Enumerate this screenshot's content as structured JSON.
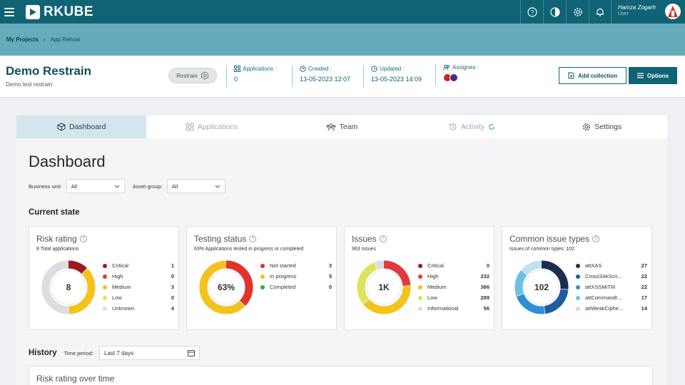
{
  "app": {
    "logo_text": "RKUBE"
  },
  "user": {
    "name": "Hamza Zogarh",
    "role": "User"
  },
  "top_icons": [
    "help-icon",
    "contrast-icon",
    "gear-icon",
    "bell-icon"
  ],
  "breadcrumb": {
    "root": "My Projects",
    "separator": "›",
    "current": "App Rehost"
  },
  "project": {
    "title": "Demo Restrain",
    "subtitle": "Demo test restrain",
    "chip": "Restrain",
    "applications_label": "Applications :",
    "applications_value": "0",
    "created_label": "Created :",
    "created_value": "13-05-2023 12:07",
    "updated_label": "Updated :",
    "updated_value": "13-05-2023 14:09",
    "assignees_label": "Assignes :",
    "add_collection": "Add collection",
    "options": "Options"
  },
  "tabs": [
    {
      "label": "Dashboard",
      "state": "active"
    },
    {
      "label": "Applications",
      "state": "disabled"
    },
    {
      "label": "Team",
      "state": "normal"
    },
    {
      "label": "Activity",
      "state": "disabled"
    },
    {
      "label": "Settings",
      "state": "normal"
    }
  ],
  "dashboard": {
    "title": "Dashboard",
    "business_unit_label": "Business unit:",
    "business_unit_value": "All",
    "asset_group_label": "Asset group:",
    "asset_group_value": "All",
    "current_state_title": "Current state"
  },
  "colors": {
    "critical": "#9b1c1c",
    "high": "#e03a3e",
    "medium": "#f2c318",
    "low": "#dfe35a",
    "unknown": "#dcdde0",
    "not_started": "#e2322d",
    "in_progress": "#f4c11d",
    "completed": "#32a852",
    "type1": "#1b2d4e",
    "type2": "#1f5da3",
    "type3": "#2e8fd6",
    "type4": "#6fbfe4",
    "type5": "#bfe1f0"
  },
  "cards": {
    "risk": {
      "title": "Risk rating",
      "subtitle": "8 Total applications",
      "center": "8",
      "items": [
        {
          "label": "Critical",
          "value": 1,
          "color": "#9b1c1c"
        },
        {
          "label": "High",
          "value": 0,
          "color": "#e03a3e"
        },
        {
          "label": "Medium",
          "value": 3,
          "color": "#f2c318"
        },
        {
          "label": "Low",
          "value": 0,
          "color": "#dfe35a"
        },
        {
          "label": "Unknown",
          "value": 4,
          "color": "#dcdde0"
        }
      ]
    },
    "testing": {
      "title": "Testing status",
      "subtitle": "63% Applications tested in progress or completed",
      "center": "63%",
      "items": [
        {
          "label": "Not started",
          "value": 3,
          "color": "#e2322d"
        },
        {
          "label": "In progress",
          "value": 5,
          "color": "#f4c11d"
        },
        {
          "label": "Completed",
          "value": 0,
          "color": "#32a852"
        }
      ]
    },
    "issues": {
      "title": "Issues",
      "subtitle": "963 Issues",
      "center": "1K",
      "items": [
        {
          "label": "Critical",
          "value": 0,
          "color": "#9b1c1c"
        },
        {
          "label": "High",
          "value": 232,
          "color": "#e03a3e"
        },
        {
          "label": "Medium",
          "value": 386,
          "color": "#f2c318"
        },
        {
          "label": "Low",
          "value": 289,
          "color": "#dfe35a"
        },
        {
          "label": "Informational",
          "value": 56,
          "color": "#dcdde0"
        }
      ]
    },
    "common": {
      "title": "Common issue types",
      "subtitle": "Issues of common types: 102",
      "center": "102",
      "items": [
        {
          "label": "attXAS",
          "value": 27,
          "color": "#1b2d4e"
        },
        {
          "label": "CrossSiteScri...",
          "value": 22,
          "color": "#1f5da3"
        },
        {
          "label": "attXSSMiTM",
          "value": 22,
          "color": "#2e8fd6"
        },
        {
          "label": "attCommandI...",
          "value": 17,
          "color": "#6fbfe4"
        },
        {
          "label": "attWeakCiphe...",
          "value": 14,
          "color": "#bfe1f0"
        }
      ]
    }
  },
  "history": {
    "title": "History",
    "time_period_label": "Time period:",
    "time_period_value": "Last 7 days",
    "risk_over_time_title": "Risk rating over time"
  }
}
